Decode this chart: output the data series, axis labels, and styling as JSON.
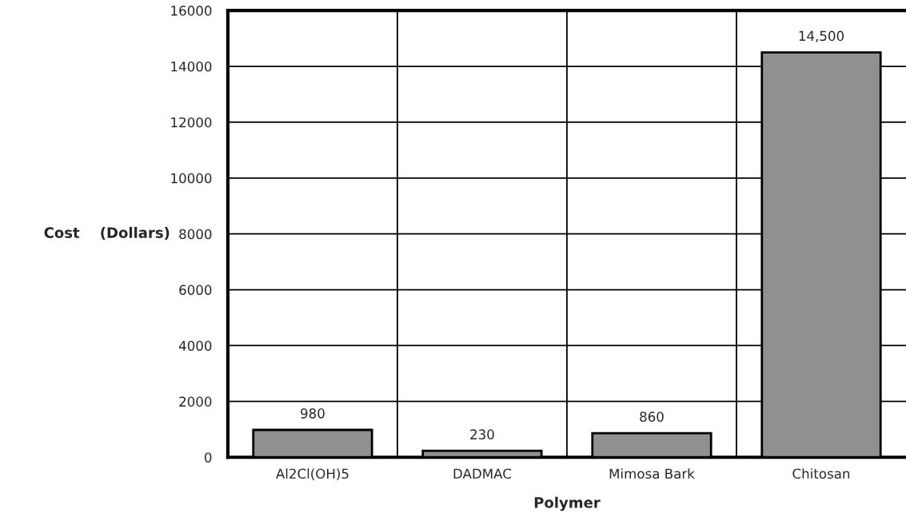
{
  "chart_data": {
    "type": "bar",
    "xlabel": "Polymer",
    "ylabel": "Cost    (Dollars)",
    "categories": [
      "Al2Cl(OH)5",
      "DADMAC",
      "Mimosa Bark",
      "Chitosan"
    ],
    "values": [
      980,
      230,
      860,
      14500
    ],
    "value_labels": [
      "980",
      "230",
      "860",
      "14,500"
    ],
    "color": "#909090",
    "ylim": [
      0,
      16000
    ],
    "yticks": [
      0,
      2000,
      4000,
      6000,
      8000,
      10000,
      12000,
      14000,
      16000
    ],
    "grid": true,
    "legend": false
  }
}
